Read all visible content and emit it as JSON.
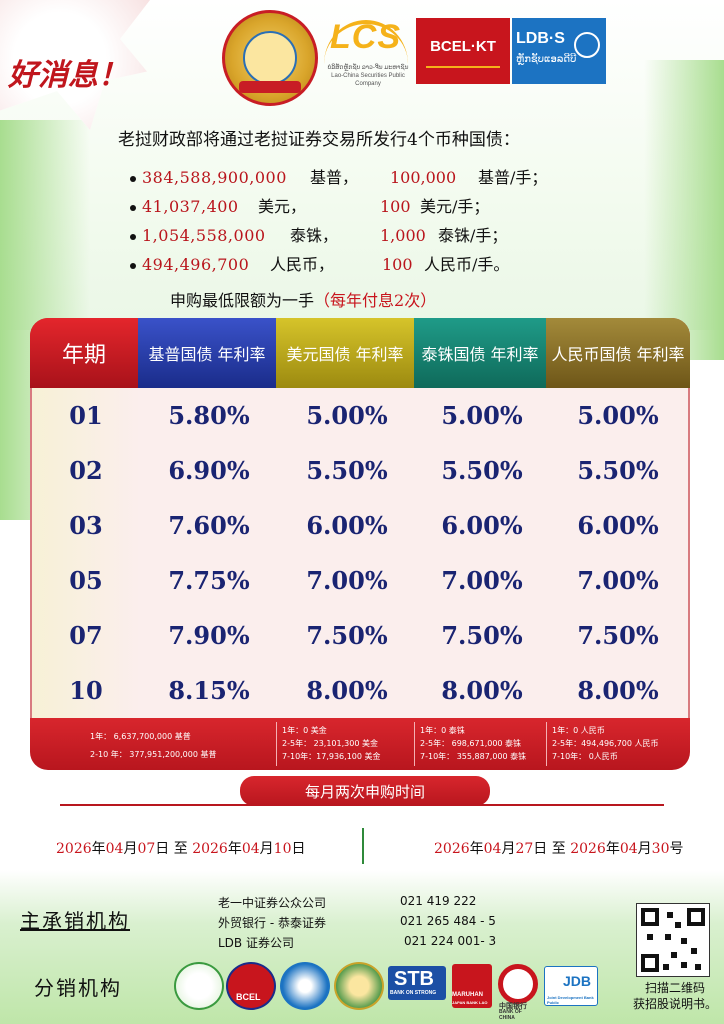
{
  "banner": {
    "good_news": "好消息！"
  },
  "logos": {
    "lcs": "LCS",
    "lcs_sub_lao": "ບໍລິສັດຫຼັກຊັບ ລາວ-ຈີນ ມະຫາຊົນ",
    "lcs_sub_en": "Lao-China Securities Public Company",
    "bcel": "BCEL·KT",
    "ldb": "LDB·S",
    "ldb_sub": "ຫຼັກຊັບແອລດີບີ"
  },
  "headline": "老挝财政部将通过老挝证券交易所发行4个币种国债：",
  "issues": [
    {
      "amount": "384,588,900,000",
      "currency": "基普，",
      "lot": "100,000",
      "unit": "基普/手；"
    },
    {
      "amount": "41,037,400",
      "currency": "美元，",
      "lot": "100",
      "unit": "美元/手；"
    },
    {
      "amount": "1,054,558,000",
      "currency": "泰铢，",
      "lot": "1,000",
      "unit": "泰铢/手；"
    },
    {
      "amount": "494,496,700",
      "currency": "人民币，",
      "lot": "100",
      "unit": "人民币/手。"
    }
  ],
  "min_subscription": "申购最低限额为一手",
  "interest_note": "（每年付息2次）",
  "table": {
    "headers": [
      "年期",
      "基普国债 年利率",
      "美元国债 年利率",
      "泰铢国债 年利率",
      "人民币国债 年利率"
    ],
    "rows": [
      {
        "year": "01",
        "kip": "5.80%",
        "usd": "5.00%",
        "thb": "5.00%",
        "cny": "5.00%"
      },
      {
        "year": "02",
        "kip": "6.90%",
        "usd": "5.50%",
        "thb": "5.50%",
        "cny": "5.50%"
      },
      {
        "year": "03",
        "kip": "7.60%",
        "usd": "6.00%",
        "thb": "6.00%",
        "cny": "6.00%"
      },
      {
        "year": "05",
        "kip": "7.75%",
        "usd": "7.00%",
        "thb": "7.00%",
        "cny": "7.00%"
      },
      {
        "year": "07",
        "kip": "7.90%",
        "usd": "7.50%",
        "thb": "7.50%",
        "cny": "7.50%"
      },
      {
        "year": "10",
        "kip": "8.15%",
        "usd": "8.00%",
        "thb": "8.00%",
        "cny": "8.00%"
      }
    ],
    "notes": {
      "kip": [
        "1年： 6,637,700,000 基普",
        "2-10 年： 377,951,200,000 基普"
      ],
      "usd": [
        "1年：0 美金",
        "2-5年： 23,101,300 美金",
        "7-10年：17,936,100 美金"
      ],
      "thb": [
        "1年：0 泰铢",
        "2-5年： 698,671,000 泰铢",
        "7-10年： 355,887,000 泰铢"
      ],
      "cny": [
        "1年：0 人民币",
        "2-5年：494,496,700 人民币",
        "7-10年： 0人民币"
      ]
    }
  },
  "schedule": {
    "title": "每月两次申购时间",
    "period1": {
      "y1": "2026",
      "m1": "04",
      "d1": "07",
      "to": "至",
      "y2": "2026",
      "m2": "04",
      "d2": "10"
    },
    "period2": {
      "y1": "2026",
      "m1": "04",
      "d1": "27",
      "to": "至",
      "y2": "2026",
      "m2": "04",
      "d2": "30"
    }
  },
  "underwriters": {
    "label": "主承销机构",
    "items": [
      {
        "name": "老一中证券公众公司",
        "phone": "021  419 222"
      },
      {
        "name": "外贸银行 - 恭泰证券",
        "phone": "021  265 484 - 5"
      },
      {
        "name": "LDB 证券公司",
        "phone": "021  224 001- 3"
      }
    ]
  },
  "distributors": {
    "label": "分销机构",
    "logos": [
      "BCEL",
      "STB",
      "BANK ON STRONG",
      "MARUHAN",
      "JAPAN BANK LAO",
      "中国银行",
      "BANK OF CHINA",
      "JDB",
      "Joint Development Bank Public"
    ]
  },
  "qr": {
    "caption_1": "扫描二维码",
    "caption_2": "获招股说明书。"
  }
}
